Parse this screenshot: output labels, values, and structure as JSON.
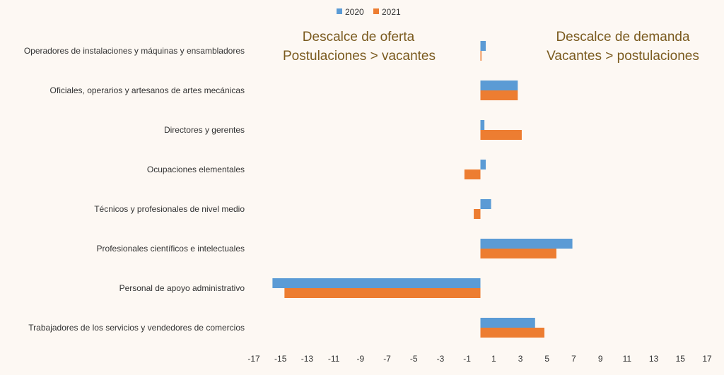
{
  "chart_data": {
    "type": "bar",
    "orientation": "horizontal",
    "categories": [
      "Operadores de instalaciones y máquinas y ensambladores",
      "Oficiales, operarios y artesanos de artes mecánicas",
      "Directores y gerentes",
      "Ocupaciones elementales",
      "Técnicos y profesionales de nivel medio",
      "Profesionales científicos e intelectuales",
      "Personal de apoyo administrativo",
      "Trabajadores de los servicios y vendedores de comercios"
    ],
    "series": [
      {
        "name": "2020",
        "color": "#5b9bd5",
        "values": [
          0.4,
          2.8,
          0.3,
          0.4,
          0.8,
          6.9,
          -15.6,
          4.1
        ]
      },
      {
        "name": "2021",
        "color": "#ed7d31",
        "values": [
          0.0,
          2.8,
          3.1,
          -1.2,
          -0.5,
          5.7,
          -14.7,
          4.8
        ]
      }
    ],
    "xlim": [
      -17,
      17
    ],
    "xticks": [
      -17,
      -15,
      -13,
      -11,
      -9,
      -7,
      -5,
      -3,
      -1,
      1,
      3,
      5,
      7,
      9,
      11,
      13,
      15,
      17
    ],
    "legend_position": "top",
    "annotations": {
      "left_line1": "Descalce de oferta",
      "left_line2": "Postulaciones > vacantes",
      "right_line1": "Descalce de demanda",
      "right_line2": "Vacantes > postulaciones"
    }
  }
}
